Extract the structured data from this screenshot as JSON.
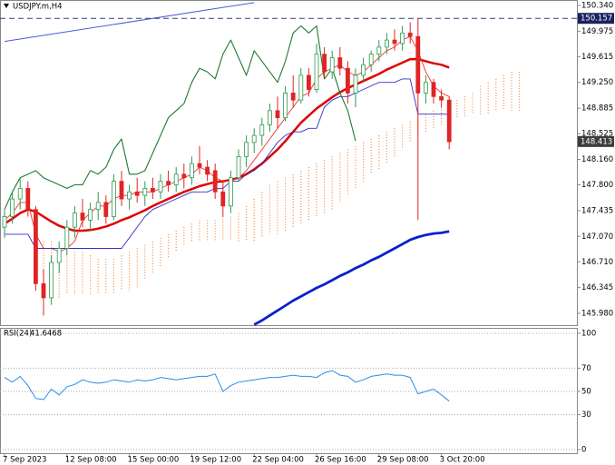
{
  "chart_data": {
    "type": "candlestick",
    "title": "USDJPY.m,H4",
    "categories": [
      "7 Sep 2023",
      null,
      null,
      null,
      null,
      null,
      null,
      null,
      "12 Sep 08:00",
      null,
      null,
      null,
      null,
      null,
      null,
      null,
      "15 Sep 00:00",
      null,
      null,
      null,
      null,
      null,
      null,
      null,
      "19 Sep 12:00",
      null,
      null,
      null,
      null,
      null,
      null,
      null,
      "22 Sep 04:00",
      null,
      null,
      null,
      null,
      null,
      null,
      null,
      "26 Sep 16:00",
      null,
      null,
      null,
      null,
      null,
      null,
      null,
      "29 Sep 08:00",
      null,
      null,
      null,
      null,
      null,
      null,
      null,
      "3 Oct 20:00",
      null,
      null,
      null,
      null,
      null,
      null,
      null,
      null,
      null,
      null
    ],
    "open": [
      147.2,
      147.35,
      147.6,
      147.75,
      147.45,
      146.4,
      146.2,
      146.7,
      146.9,
      147.2,
      147.4,
      147.3,
      147.45,
      147.55,
      147.35,
      147.85,
      147.6,
      147.7,
      147.65,
      147.75,
      147.7,
      147.85,
      147.8,
      147.95,
      147.9,
      148.1,
      148.05,
      148.0,
      147.7,
      147.5,
      147.9,
      148.2,
      148.4,
      148.5,
      148.65,
      148.85,
      148.75,
      149.1,
      149.0,
      149.35,
      149.15,
      149.65,
      149.4,
      149.6,
      149.45,
      149.1,
      149.35,
      149.5,
      149.65,
      149.75,
      149.85,
      149.8,
      149.95,
      149.9,
      149.1,
      149.25,
      149.05,
      149.0,
      null,
      null,
      null,
      null,
      null,
      null,
      null,
      null,
      null
    ],
    "high": [
      147.45,
      147.7,
      147.9,
      147.85,
      147.5,
      146.6,
      146.8,
      147.0,
      147.3,
      147.5,
      147.6,
      147.55,
      147.7,
      147.65,
      147.95,
      148.0,
      147.8,
      147.9,
      147.85,
      147.9,
      147.95,
      148.0,
      148.05,
      148.1,
      148.2,
      148.35,
      148.15,
      148.1,
      147.85,
      148.0,
      148.3,
      148.5,
      148.6,
      148.75,
      148.95,
      149.05,
      149.2,
      149.35,
      149.45,
      149.45,
      149.8,
      149.75,
      149.7,
      149.75,
      149.55,
      149.45,
      149.6,
      149.7,
      149.85,
      149.95,
      150.0,
      150.05,
      150.1,
      150.16,
      149.35,
      149.3,
      149.15,
      149.05,
      null,
      null,
      null,
      null,
      null,
      null,
      null,
      null,
      null
    ],
    "low": [
      147.05,
      147.25,
      147.45,
      147.35,
      146.3,
      145.95,
      146.1,
      146.55,
      146.8,
      147.05,
      147.2,
      147.15,
      147.3,
      147.25,
      147.3,
      147.5,
      147.45,
      147.55,
      147.5,
      147.6,
      147.6,
      147.7,
      147.7,
      147.75,
      147.8,
      147.95,
      147.85,
      147.6,
      147.35,
      147.4,
      147.85,
      148.05,
      148.25,
      148.35,
      148.55,
      148.6,
      148.7,
      148.9,
      148.95,
      149.05,
      149.1,
      149.3,
      149.3,
      149.35,
      148.95,
      148.9,
      149.25,
      149.4,
      149.55,
      149.65,
      149.7,
      149.7,
      149.8,
      147.3,
      148.95,
      148.95,
      148.9,
      148.3,
      null,
      null,
      null,
      null,
      null,
      null,
      null,
      null,
      null
    ],
    "close": [
      147.35,
      147.6,
      147.75,
      147.45,
      146.4,
      146.2,
      146.7,
      146.9,
      147.2,
      147.4,
      147.3,
      147.45,
      147.55,
      147.35,
      147.85,
      147.6,
      147.7,
      147.65,
      147.75,
      147.7,
      147.85,
      147.8,
      147.95,
      147.9,
      148.1,
      148.05,
      147.95,
      147.7,
      147.5,
      147.9,
      148.2,
      148.4,
      148.5,
      148.65,
      148.85,
      148.75,
      149.1,
      149.0,
      149.35,
      149.15,
      149.65,
      149.4,
      149.6,
      149.45,
      149.1,
      149.35,
      149.5,
      149.65,
      149.75,
      149.85,
      149.8,
      149.95,
      149.9,
      149.1,
      149.25,
      149.05,
      149.0,
      148.41,
      null,
      null,
      null,
      null,
      null,
      null,
      null,
      null,
      null
    ],
    "up_color": "#2e9a4e",
    "down_color": "#e02424",
    "lines": [
      {
        "color": "#e00000",
        "values": [
          147.25,
          147.32,
          147.4,
          147.45,
          147.42,
          147.35,
          147.28,
          147.22,
          147.18,
          147.15,
          147.15,
          147.16,
          147.18,
          147.21,
          147.25,
          147.3,
          147.34,
          147.39,
          147.44,
          147.5,
          147.55,
          147.6,
          147.65,
          147.7,
          147.74,
          147.78,
          147.81,
          147.84,
          147.85,
          147.87,
          147.9,
          147.95,
          148.02,
          148.1,
          148.2,
          148.3,
          148.42,
          148.55,
          148.68,
          148.78,
          148.88,
          148.96,
          149.04,
          149.11,
          149.17,
          149.22,
          149.27,
          149.32,
          149.37,
          149.43,
          149.48,
          149.53,
          149.58,
          149.58,
          149.55,
          149.52,
          149.5,
          149.46,
          null,
          null,
          null,
          null,
          null,
          null,
          null,
          null,
          null
        ]
      },
      {
        "color": "#f03030",
        "values": [
          147.3,
          147.4,
          147.55,
          147.55,
          147.1,
          146.9,
          146.9,
          146.85,
          146.9,
          147.0,
          147.3,
          147.4,
          147.5,
          147.5,
          147.6,
          147.65,
          147.65,
          147.7,
          147.7,
          147.7,
          147.75,
          147.8,
          147.85,
          147.9,
          147.95,
          148.05,
          148.0,
          147.9,
          147.85,
          147.85,
          147.9,
          148.0,
          148.15,
          148.3,
          148.45,
          148.6,
          148.75,
          148.9,
          149.05,
          149.1,
          149.3,
          149.4,
          149.45,
          149.5,
          149.4,
          149.35,
          149.4,
          149.5,
          149.6,
          149.7,
          149.75,
          149.85,
          149.9,
          149.7,
          149.4,
          149.2,
          149.1,
          149.05,
          null,
          null,
          null,
          null,
          null,
          null,
          null,
          null,
          null
        ]
      },
      {
        "color": "#3030c8",
        "values": [
          147.1,
          147.1,
          147.1,
          147.1,
          146.9,
          146.9,
          146.9,
          146.9,
          146.9,
          146.9,
          146.9,
          146.9,
          146.9,
          146.9,
          146.9,
          146.9,
          147.05,
          147.2,
          147.35,
          147.45,
          147.5,
          147.55,
          147.6,
          147.65,
          147.7,
          147.7,
          147.7,
          147.75,
          147.75,
          147.85,
          147.85,
          147.95,
          148.0,
          148.1,
          148.25,
          148.4,
          148.5,
          148.55,
          148.55,
          148.6,
          148.6,
          148.9,
          149.0,
          149.05,
          149.05,
          149.1,
          149.15,
          149.2,
          149.25,
          149.25,
          149.25,
          149.3,
          149.3,
          148.8,
          148.8,
          148.8,
          148.8,
          148.8,
          null,
          null,
          null,
          null,
          null,
          null,
          null,
          null,
          null
        ]
      },
      {
        "color": "#1f7a2e",
        "values": [
          147.45,
          147.7,
          147.9,
          147.95,
          148.0,
          147.9,
          147.85,
          147.8,
          147.75,
          147.8,
          147.8,
          148.0,
          147.95,
          148.05,
          148.3,
          148.45,
          147.95,
          147.95,
          148.0,
          148.25,
          148.5,
          148.75,
          148.85,
          148.95,
          149.25,
          149.45,
          149.4,
          149.3,
          149.65,
          149.85,
          149.6,
          149.35,
          149.7,
          149.55,
          149.4,
          149.25,
          149.55,
          149.95,
          150.05,
          149.95,
          150.05,
          149.3,
          149.45,
          149.1,
          148.85,
          148.42,
          null,
          null,
          null,
          null,
          null,
          null,
          null,
          null,
          null,
          null,
          null,
          null,
          null,
          null,
          null,
          null,
          null,
          null,
          null,
          null,
          null
        ]
      },
      {
        "color": "#0a1fd0",
        "values": [
          null,
          null,
          null,
          null,
          null,
          null,
          null,
          null,
          null,
          null,
          null,
          null,
          null,
          null,
          null,
          null,
          null,
          null,
          null,
          null,
          null,
          null,
          null,
          null,
          null,
          null,
          null,
          null,
          null,
          null,
          null,
          null,
          145.82,
          145.88,
          145.95,
          146.02,
          146.09,
          146.16,
          146.22,
          146.28,
          146.34,
          146.39,
          146.45,
          146.51,
          146.56,
          146.62,
          146.67,
          146.73,
          146.78,
          146.84,
          146.9,
          146.96,
          147.02,
          147.06,
          147.09,
          147.11,
          147.12,
          147.14,
          null,
          null,
          null,
          null,
          null,
          null,
          null,
          null,
          null
        ]
      }
    ],
    "cloud": {
      "color": "#f08a3c",
      "span_a": [
        null,
        null,
        null,
        null,
        null,
        147.0,
        147.0,
        146.95,
        146.9,
        146.85,
        146.85,
        146.8,
        146.75,
        146.75,
        146.75,
        146.8,
        146.85,
        146.9,
        146.95,
        147.0,
        147.05,
        147.1,
        147.15,
        147.2,
        147.25,
        147.3,
        147.3,
        147.3,
        147.35,
        147.35,
        147.4,
        147.5,
        147.6,
        147.7,
        147.8,
        147.85,
        147.9,
        147.95,
        148.0,
        148.05,
        148.1,
        148.15,
        148.2,
        148.25,
        148.3,
        148.35,
        148.4,
        148.45,
        148.5,
        148.55,
        148.6,
        148.65,
        148.7,
        148.75,
        148.8,
        148.85,
        148.9,
        148.95,
        149.0,
        149.05,
        149.1,
        149.2,
        149.25,
        149.3,
        149.35,
        149.4,
        149.4
      ],
      "span_b": [
        null,
        null,
        null,
        null,
        null,
        146.2,
        146.2,
        146.2,
        146.25,
        146.25,
        146.25,
        146.25,
        146.25,
        146.25,
        146.25,
        146.3,
        146.3,
        146.35,
        146.45,
        146.55,
        146.65,
        146.75,
        146.85,
        146.95,
        147.0,
        147.0,
        147.0,
        147.0,
        147.0,
        147.0,
        147.0,
        147.0,
        147.0,
        147.05,
        147.1,
        147.1,
        147.15,
        147.2,
        147.25,
        147.3,
        147.35,
        147.4,
        147.45,
        147.55,
        147.65,
        147.75,
        147.85,
        147.95,
        148.0,
        148.1,
        148.2,
        148.3,
        148.4,
        148.5,
        148.55,
        148.6,
        148.65,
        148.7,
        148.75,
        148.75,
        148.8,
        148.8,
        148.8,
        148.85,
        148.85,
        148.85,
        148.85
      ]
    },
    "trendline": {
      "x": [
        0,
        32
      ],
      "values": [
        149.83,
        150.38
      ],
      "color": "#4a5ad8"
    },
    "hline": 150.157,
    "last_price": 148.413,
    "ylim": [
      145.813,
      150.417
    ],
    "yticks": [
      {
        "value": 150.34,
        "label": "150.340"
      },
      149.975,
      149.615,
      {
        "value": 149.25,
        "label": "149.250"
      },
      148.885,
      148.525,
      {
        "value": 148.16,
        "label": "148.160"
      },
      {
        "value": 147.8,
        "label": "147.800"
      },
      147.435,
      {
        "value": 147.07,
        "label": "147.070"
      },
      {
        "value": 146.71,
        "label": "146.710"
      },
      146.345,
      {
        "value": 145.98,
        "label": "145.980"
      }
    ],
    "rsi": {
      "type": "line",
      "title": "RSI(24)",
      "last_value": 41.6468,
      "color": "#2a8de8",
      "values": [
        62,
        58,
        63,
        55,
        44,
        43,
        52,
        47,
        54,
        56,
        60,
        58,
        57,
        58,
        60,
        59,
        58,
        60,
        59,
        60,
        62,
        61,
        60,
        61,
        62,
        63,
        63,
        65,
        50,
        55,
        58,
        59,
        60,
        61,
        62,
        62,
        63,
        64,
        63,
        63,
        62,
        66,
        68,
        64,
        63,
        58,
        60,
        63,
        64,
        65,
        64,
        64,
        62,
        48,
        50,
        52,
        47,
        41.6468,
        null,
        null,
        null,
        null,
        null,
        null,
        null,
        null,
        null
      ],
      "ylim": [
        -3.9,
        103.9
      ],
      "yticks": [
        100,
        70,
        50,
        30,
        0
      ],
      "grid": true
    }
  }
}
